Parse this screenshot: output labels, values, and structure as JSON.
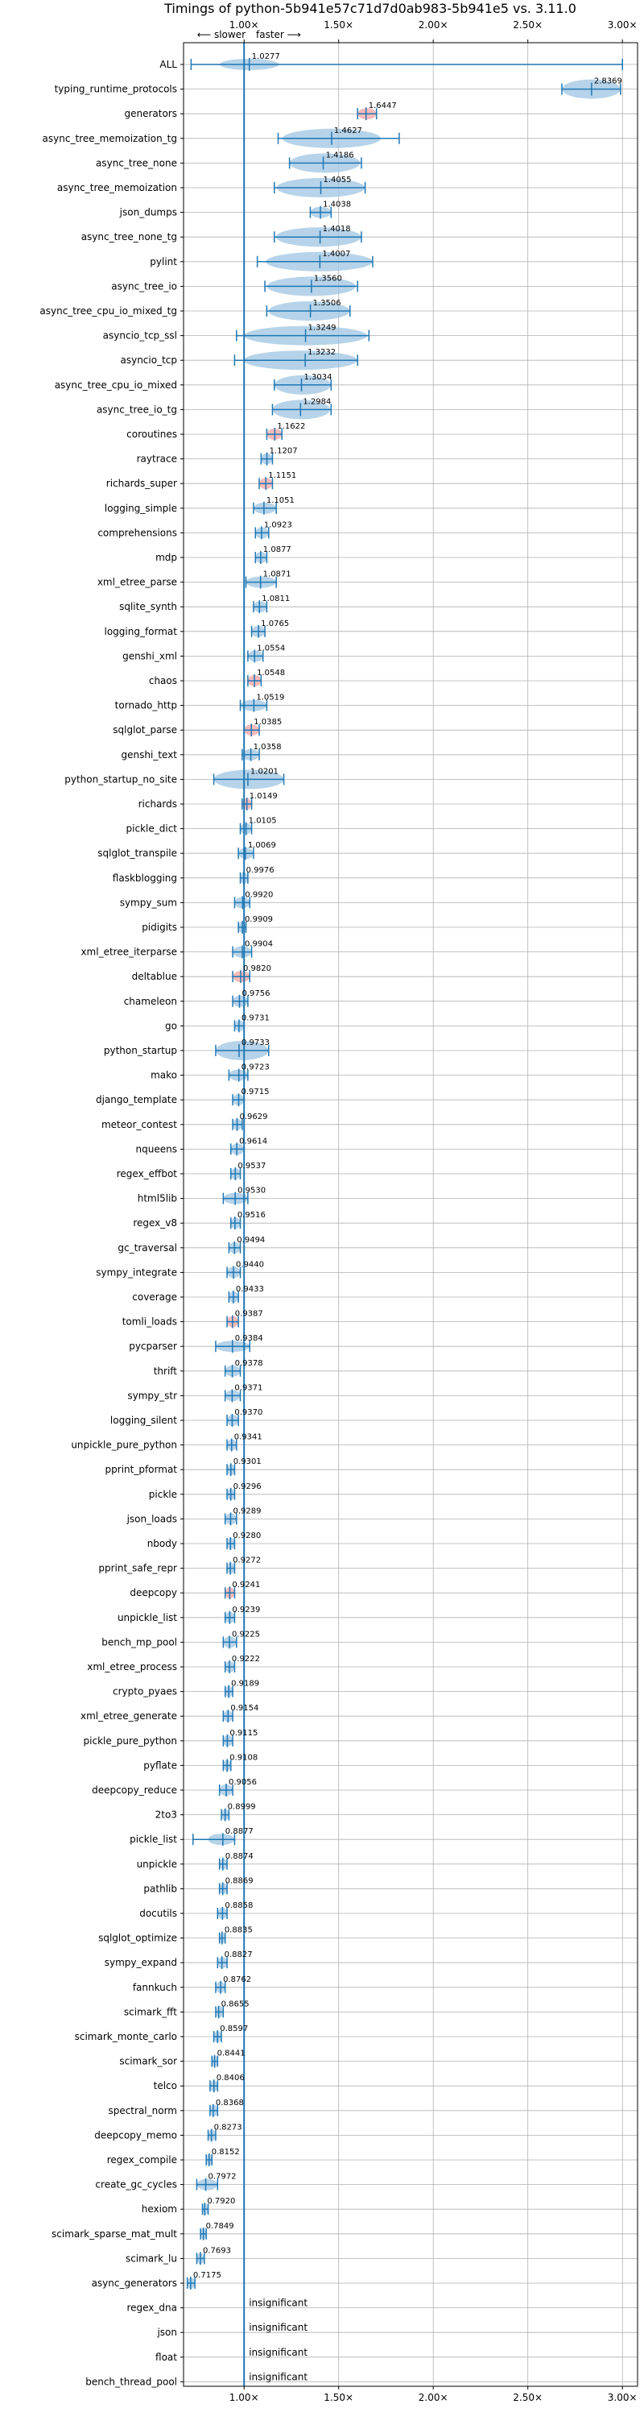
{
  "chart_data": {
    "type": "violin",
    "title": "Timings of python-5b941e57c71d7d0ab983-5b941e5 vs. 3.11.0",
    "direction_labels": {
      "slower": "⟵ slower",
      "faster": "faster ⟶"
    },
    "x_ticks": [
      {
        "value": 1.0,
        "label": "1.00×"
      },
      {
        "value": 1.5,
        "label": "1.50×"
      },
      {
        "value": 2.0,
        "label": "2.00×"
      },
      {
        "value": 2.5,
        "label": "2.50×"
      },
      {
        "value": 3.0,
        "label": "3.00×"
      }
    ],
    "xlim": [
      0.68,
      3.08
    ],
    "grid": true,
    "reference_line": 1.0,
    "colors": {
      "violin": "#9ec4e2",
      "line": "#1f77b4",
      "highlight": "#f4a3a3",
      "grid": "#b0b0b0"
    },
    "benchmarks": [
      {
        "name": "ALL",
        "value": 1.0277,
        "label": "1.0277",
        "lo": 0.72,
        "hi": 3.0,
        "spread": 0.12,
        "style": "all"
      },
      {
        "name": "typing_runtime_protocols",
        "value": 2.8369,
        "label": "2.8369",
        "lo": 2.68,
        "hi": 2.99,
        "spread": 0.12
      },
      {
        "name": "generators",
        "value": 1.6447,
        "label": "1.6447",
        "lo": 1.6,
        "hi": 1.7,
        "spread": 0.05,
        "highlight": true
      },
      {
        "name": "async_tree_memoization_tg",
        "value": 1.4627,
        "label": "1.4627",
        "lo": 1.18,
        "hi": 1.82,
        "spread": 0.2
      },
      {
        "name": "async_tree_none",
        "value": 1.4186,
        "label": "1.4186",
        "lo": 1.24,
        "hi": 1.62,
        "spread": 0.15
      },
      {
        "name": "async_tree_memoization",
        "value": 1.4055,
        "label": "1.4055",
        "lo": 1.16,
        "hi": 1.64,
        "spread": 0.18
      },
      {
        "name": "json_dumps",
        "value": 1.4038,
        "label": "1.4038",
        "lo": 1.35,
        "hi": 1.46,
        "spread": 0.05
      },
      {
        "name": "async_tree_none_tg",
        "value": 1.4018,
        "label": "1.4018",
        "lo": 1.16,
        "hi": 1.62,
        "spread": 0.18
      },
      {
        "name": "pylint",
        "value": 1.4007,
        "label": "1.4007",
        "lo": 1.07,
        "hi": 1.68,
        "spread": 0.22
      },
      {
        "name": "async_tree_io",
        "value": 1.356,
        "label": "1.3560",
        "lo": 1.11,
        "hi": 1.6,
        "spread": 0.18
      },
      {
        "name": "async_tree_cpu_io_mixed_tg",
        "value": 1.3506,
        "label": "1.3506",
        "lo": 1.12,
        "hi": 1.56,
        "spread": 0.17
      },
      {
        "name": "asyncio_tcp_ssl",
        "value": 1.3249,
        "label": "1.3249",
        "lo": 0.96,
        "hi": 1.66,
        "spread": 0.25
      },
      {
        "name": "asyncio_tcp",
        "value": 1.3232,
        "label": "1.3232",
        "lo": 0.95,
        "hi": 1.6,
        "spread": 0.25
      },
      {
        "name": "async_tree_cpu_io_mixed",
        "value": 1.3034,
        "label": "1.3034",
        "lo": 1.16,
        "hi": 1.46,
        "spread": 0.12
      },
      {
        "name": "async_tree_io_tg",
        "value": 1.2984,
        "label": "1.2984",
        "lo": 1.15,
        "hi": 1.46,
        "spread": 0.12
      },
      {
        "name": "coroutines",
        "value": 1.1622,
        "label": "1.1622",
        "lo": 1.12,
        "hi": 1.2,
        "spread": 0.05,
        "highlight": true
      },
      {
        "name": "raytrace",
        "value": 1.1207,
        "label": "1.1207",
        "lo": 1.09,
        "hi": 1.15,
        "spread": 0.04
      },
      {
        "name": "richards_super",
        "value": 1.1151,
        "label": "1.1151",
        "lo": 1.08,
        "hi": 1.15,
        "spread": 0.04,
        "highlight": true
      },
      {
        "name": "logging_simple",
        "value": 1.1051,
        "label": "1.1051",
        "lo": 1.05,
        "hi": 1.17,
        "spread": 0.06
      },
      {
        "name": "comprehensions",
        "value": 1.0923,
        "label": "1.0923",
        "lo": 1.06,
        "hi": 1.13,
        "spread": 0.04
      },
      {
        "name": "mdp",
        "value": 1.0877,
        "label": "1.0877",
        "lo": 1.06,
        "hi": 1.12,
        "spread": 0.04
      },
      {
        "name": "xml_etree_parse",
        "value": 1.0871,
        "label": "1.0871",
        "lo": 1.01,
        "hi": 1.17,
        "spread": 0.07
      },
      {
        "name": "sqlite_synth",
        "value": 1.0811,
        "label": "1.0811",
        "lo": 1.05,
        "hi": 1.12,
        "spread": 0.04
      },
      {
        "name": "logging_format",
        "value": 1.0765,
        "label": "1.0765",
        "lo": 1.04,
        "hi": 1.11,
        "spread": 0.04
      },
      {
        "name": "genshi_xml",
        "value": 1.0554,
        "label": "1.0554",
        "lo": 1.02,
        "hi": 1.1,
        "spread": 0.05
      },
      {
        "name": "chaos",
        "value": 1.0548,
        "label": "1.0548",
        "lo": 1.02,
        "hi": 1.09,
        "spread": 0.04,
        "highlight": true
      },
      {
        "name": "tornado_http",
        "value": 1.0519,
        "label": "1.0519",
        "lo": 0.98,
        "hi": 1.12,
        "spread": 0.07
      },
      {
        "name": "sqlglot_parse",
        "value": 1.0385,
        "label": "1.0385",
        "lo": 1.0,
        "hi": 1.08,
        "spread": 0.04,
        "highlight": true
      },
      {
        "name": "genshi_text",
        "value": 1.0358,
        "label": "1.0358",
        "lo": 0.99,
        "hi": 1.08,
        "spread": 0.05
      },
      {
        "name": "python_startup_no_site",
        "value": 1.0201,
        "label": "1.0201",
        "lo": 0.84,
        "hi": 1.21,
        "spread": 0.15
      },
      {
        "name": "richards",
        "value": 1.0149,
        "label": "1.0149",
        "lo": 0.99,
        "hi": 1.04,
        "spread": 0.03,
        "highlight": true
      },
      {
        "name": "pickle_dict",
        "value": 1.0105,
        "label": "1.0105",
        "lo": 0.98,
        "hi": 1.04,
        "spread": 0.03
      },
      {
        "name": "sqlglot_transpile",
        "value": 1.0069,
        "label": "1.0069",
        "lo": 0.97,
        "hi": 1.05,
        "spread": 0.04
      },
      {
        "name": "flaskblogging",
        "value": 0.9976,
        "label": "0.9976",
        "lo": 0.98,
        "hi": 1.02,
        "spread": 0.02
      },
      {
        "name": "sympy_sum",
        "value": 0.992,
        "label": "0.9920",
        "lo": 0.95,
        "hi": 1.03,
        "spread": 0.04
      },
      {
        "name": "pidigits",
        "value": 0.9909,
        "label": "0.9909",
        "lo": 0.97,
        "hi": 1.01,
        "spread": 0.03
      },
      {
        "name": "xml_etree_iterparse",
        "value": 0.9904,
        "label": "0.9904",
        "lo": 0.94,
        "hi": 1.04,
        "spread": 0.05
      },
      {
        "name": "deltablue",
        "value": 0.982,
        "label": "0.9820",
        "lo": 0.94,
        "hi": 1.03,
        "spread": 0.05,
        "highlight": true
      },
      {
        "name": "chameleon",
        "value": 0.9756,
        "label": "0.9756",
        "lo": 0.94,
        "hi": 1.02,
        "spread": 0.04
      },
      {
        "name": "go",
        "value": 0.9731,
        "label": "0.9731",
        "lo": 0.95,
        "hi": 1.0,
        "spread": 0.03
      },
      {
        "name": "python_startup",
        "value": 0.9733,
        "label": "0.9733",
        "lo": 0.85,
        "hi": 1.13,
        "spread": 0.12
      },
      {
        "name": "mako",
        "value": 0.9723,
        "label": "0.9723",
        "lo": 0.92,
        "hi": 1.02,
        "spread": 0.05
      },
      {
        "name": "django_template",
        "value": 0.9715,
        "label": "0.9715",
        "lo": 0.94,
        "hi": 1.0,
        "spread": 0.04
      },
      {
        "name": "meteor_contest",
        "value": 0.9629,
        "label": "0.9629",
        "lo": 0.94,
        "hi": 0.99,
        "spread": 0.03
      },
      {
        "name": "nqueens",
        "value": 0.9614,
        "label": "0.9614",
        "lo": 0.93,
        "hi": 1.0,
        "spread": 0.04
      },
      {
        "name": "regex_effbot",
        "value": 0.9537,
        "label": "0.9537",
        "lo": 0.93,
        "hi": 0.98,
        "spread": 0.03
      },
      {
        "name": "html5lib",
        "value": 0.953,
        "label": "0.9530",
        "lo": 0.89,
        "hi": 1.02,
        "spread": 0.06
      },
      {
        "name": "regex_v8",
        "value": 0.9516,
        "label": "0.9516",
        "lo": 0.93,
        "hi": 0.98,
        "spread": 0.03
      },
      {
        "name": "gc_traversal",
        "value": 0.9494,
        "label": "0.9494",
        "lo": 0.92,
        "hi": 0.98,
        "spread": 0.04
      },
      {
        "name": "sympy_integrate",
        "value": 0.944,
        "label": "0.9440",
        "lo": 0.91,
        "hi": 0.98,
        "spread": 0.04
      },
      {
        "name": "coverage",
        "value": 0.9433,
        "label": "0.9433",
        "lo": 0.92,
        "hi": 0.97,
        "spread": 0.03
      },
      {
        "name": "tomli_loads",
        "value": 0.9387,
        "label": "0.9387",
        "lo": 0.91,
        "hi": 0.97,
        "spread": 0.03,
        "highlight": true
      },
      {
        "name": "pycparser",
        "value": 0.9384,
        "label": "0.9384",
        "lo": 0.85,
        "hi": 1.03,
        "spread": 0.08
      },
      {
        "name": "thrift",
        "value": 0.9378,
        "label": "0.9378",
        "lo": 0.9,
        "hi": 0.98,
        "spread": 0.04
      },
      {
        "name": "sympy_str",
        "value": 0.9371,
        "label": "0.9371",
        "lo": 0.9,
        "hi": 0.98,
        "spread": 0.04
      },
      {
        "name": "logging_silent",
        "value": 0.937,
        "label": "0.9370",
        "lo": 0.91,
        "hi": 0.97,
        "spread": 0.03
      },
      {
        "name": "unpickle_pure_python",
        "value": 0.9341,
        "label": "0.9341",
        "lo": 0.91,
        "hi": 0.96,
        "spread": 0.03
      },
      {
        "name": "pprint_pformat",
        "value": 0.9301,
        "label": "0.9301",
        "lo": 0.91,
        "hi": 0.95,
        "spread": 0.02
      },
      {
        "name": "pickle",
        "value": 0.9296,
        "label": "0.9296",
        "lo": 0.91,
        "hi": 0.95,
        "spread": 0.02
      },
      {
        "name": "json_loads",
        "value": 0.9289,
        "label": "0.9289",
        "lo": 0.9,
        "hi": 0.96,
        "spread": 0.03
      },
      {
        "name": "nbody",
        "value": 0.928,
        "label": "0.9280",
        "lo": 0.91,
        "hi": 0.95,
        "spread": 0.02
      },
      {
        "name": "pprint_safe_repr",
        "value": 0.9272,
        "label": "0.9272",
        "lo": 0.91,
        "hi": 0.95,
        "spread": 0.02
      },
      {
        "name": "deepcopy",
        "value": 0.9241,
        "label": "0.9241",
        "lo": 0.9,
        "hi": 0.95,
        "spread": 0.03,
        "highlight": true
      },
      {
        "name": "unpickle_list",
        "value": 0.9239,
        "label": "0.9239",
        "lo": 0.9,
        "hi": 0.95,
        "spread": 0.03
      },
      {
        "name": "bench_mp_pool",
        "value": 0.9225,
        "label": "0.9225",
        "lo": 0.89,
        "hi": 0.96,
        "spread": 0.04
      },
      {
        "name": "xml_etree_process",
        "value": 0.9222,
        "label": "0.9222",
        "lo": 0.9,
        "hi": 0.95,
        "spread": 0.03
      },
      {
        "name": "crypto_pyaes",
        "value": 0.9189,
        "label": "0.9189",
        "lo": 0.9,
        "hi": 0.94,
        "spread": 0.02
      },
      {
        "name": "xml_etree_generate",
        "value": 0.9154,
        "label": "0.9154",
        "lo": 0.89,
        "hi": 0.94,
        "spread": 0.03
      },
      {
        "name": "pickle_pure_python",
        "value": 0.9115,
        "label": "0.9115",
        "lo": 0.89,
        "hi": 0.94,
        "spread": 0.03
      },
      {
        "name": "pyflate",
        "value": 0.9108,
        "label": "0.9108",
        "lo": 0.89,
        "hi": 0.93,
        "spread": 0.02
      },
      {
        "name": "deepcopy_reduce",
        "value": 0.9056,
        "label": "0.9056",
        "lo": 0.87,
        "hi": 0.94,
        "spread": 0.04
      },
      {
        "name": "2to3",
        "value": 0.8999,
        "label": "0.8999",
        "lo": 0.88,
        "hi": 0.92,
        "spread": 0.02
      },
      {
        "name": "pickle_list",
        "value": 0.8877,
        "label": "0.8877",
        "lo": 0.73,
        "hi": 0.95,
        "spread": 0.06
      },
      {
        "name": "unpickle",
        "value": 0.8874,
        "label": "0.8874",
        "lo": 0.87,
        "hi": 0.91,
        "spread": 0.02
      },
      {
        "name": "pathlib",
        "value": 0.8869,
        "label": "0.8869",
        "lo": 0.87,
        "hi": 0.91,
        "spread": 0.02
      },
      {
        "name": "docutils",
        "value": 0.8858,
        "label": "0.8858",
        "lo": 0.86,
        "hi": 0.91,
        "spread": 0.03
      },
      {
        "name": "sqlglot_optimize",
        "value": 0.8835,
        "label": "0.8835",
        "lo": 0.87,
        "hi": 0.9,
        "spread": 0.02
      },
      {
        "name": "sympy_expand",
        "value": 0.8827,
        "label": "0.8827",
        "lo": 0.86,
        "hi": 0.91,
        "spread": 0.03
      },
      {
        "name": "fannkuch",
        "value": 0.8762,
        "label": "0.8762",
        "lo": 0.85,
        "hi": 0.9,
        "spread": 0.03
      },
      {
        "name": "scimark_fft",
        "value": 0.8655,
        "label": "0.8655",
        "lo": 0.85,
        "hi": 0.89,
        "spread": 0.02
      },
      {
        "name": "scimark_monte_carlo",
        "value": 0.8597,
        "label": "0.8597",
        "lo": 0.84,
        "hi": 0.88,
        "spread": 0.02
      },
      {
        "name": "scimark_sor",
        "value": 0.8441,
        "label": "0.8441",
        "lo": 0.83,
        "hi": 0.86,
        "spread": 0.015
      },
      {
        "name": "telco",
        "value": 0.8406,
        "label": "0.8406",
        "lo": 0.82,
        "hi": 0.86,
        "spread": 0.02
      },
      {
        "name": "spectral_norm",
        "value": 0.8368,
        "label": "0.8368",
        "lo": 0.82,
        "hi": 0.86,
        "spread": 0.02
      },
      {
        "name": "deepcopy_memo",
        "value": 0.8273,
        "label": "0.8273",
        "lo": 0.81,
        "hi": 0.85,
        "spread": 0.02
      },
      {
        "name": "regex_compile",
        "value": 0.8152,
        "label": "0.8152",
        "lo": 0.8,
        "hi": 0.83,
        "spread": 0.015
      },
      {
        "name": "create_gc_cycles",
        "value": 0.7972,
        "label": "0.7972",
        "lo": 0.75,
        "hi": 0.86,
        "spread": 0.05
      },
      {
        "name": "hexiom",
        "value": 0.792,
        "label": "0.7920",
        "lo": 0.78,
        "hi": 0.81,
        "spread": 0.015
      },
      {
        "name": "scimark_sparse_mat_mult",
        "value": 0.7849,
        "label": "0.7849",
        "lo": 0.77,
        "hi": 0.8,
        "spread": 0.015
      },
      {
        "name": "scimark_lu",
        "value": 0.7693,
        "label": "0.7693",
        "lo": 0.75,
        "hi": 0.79,
        "spread": 0.015
      },
      {
        "name": "async_generators",
        "value": 0.7175,
        "label": "0.7175",
        "lo": 0.7,
        "hi": 0.74,
        "spread": 0.02
      },
      {
        "name": "regex_dna",
        "insignificant": true,
        "label": "insignificant"
      },
      {
        "name": "json",
        "insignificant": true,
        "label": "insignificant"
      },
      {
        "name": "float",
        "insignificant": true,
        "label": "insignificant"
      },
      {
        "name": "bench_thread_pool",
        "insignificant": true,
        "label": "insignificant"
      }
    ]
  }
}
